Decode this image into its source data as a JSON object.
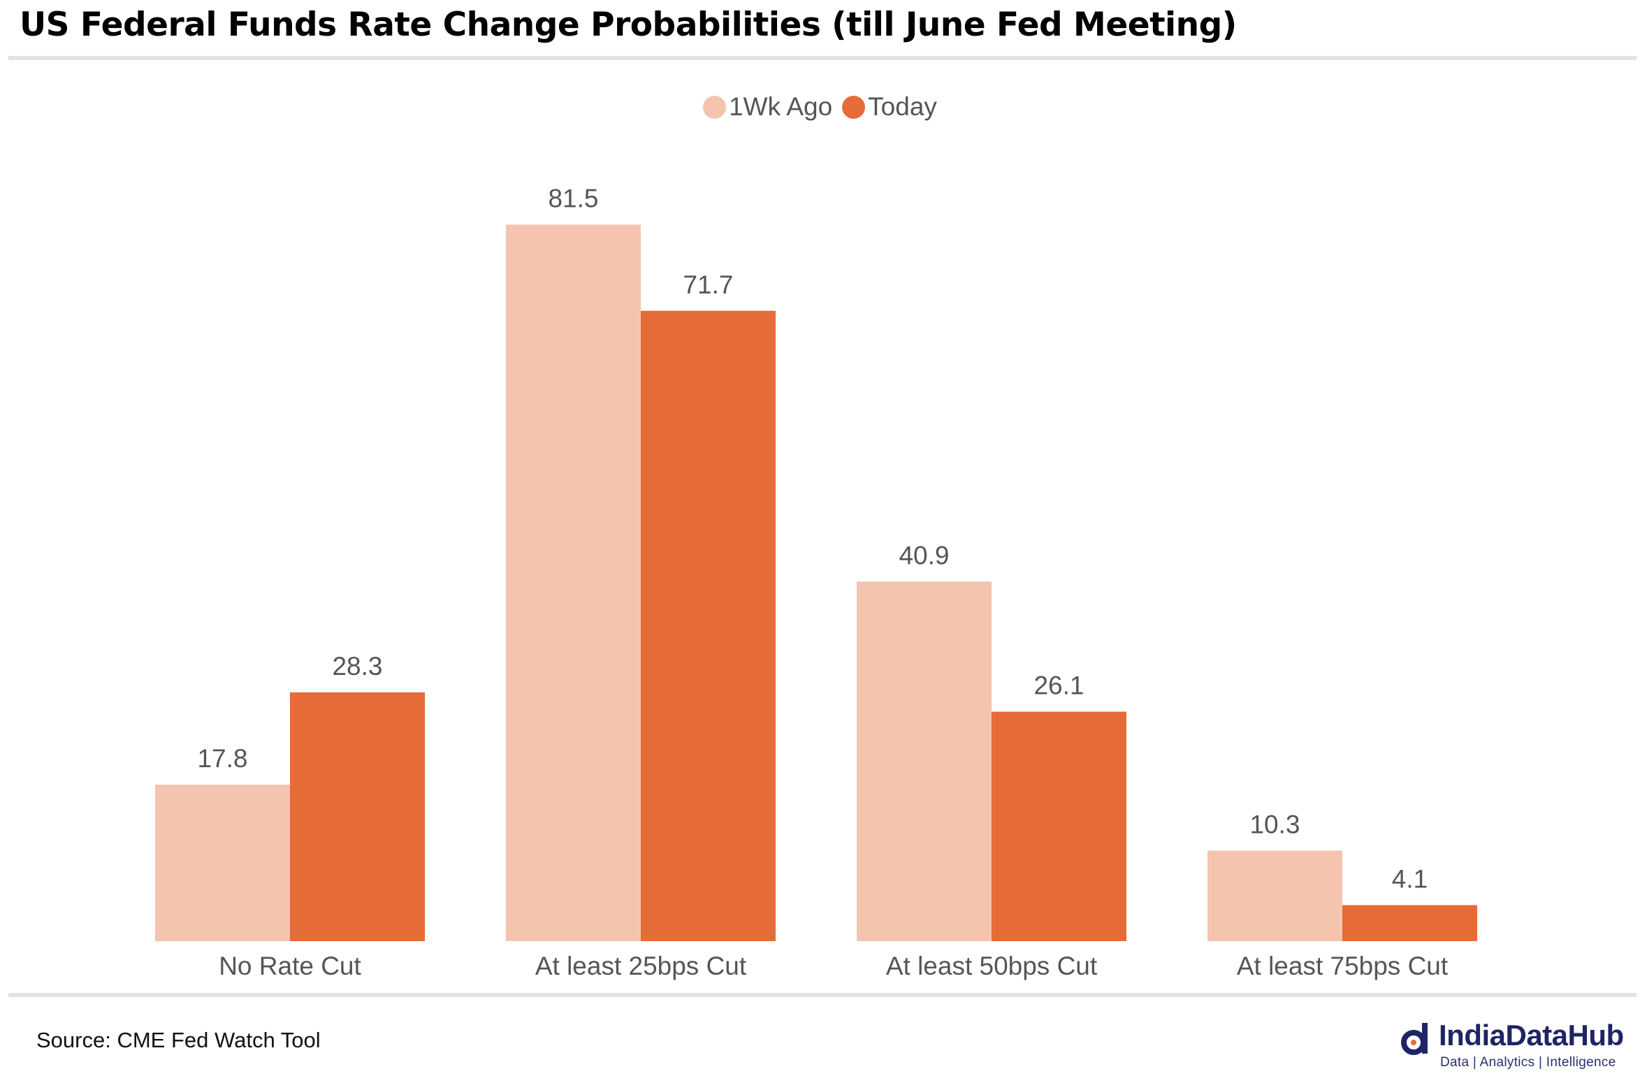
{
  "title": "US Federal Funds Rate Change Probabilities (till June Fed Meeting)",
  "source": "Source: CME Fed Watch Tool",
  "brand": {
    "name": "IndiaDataHub",
    "tagline": "Data | Analytics | Intelligence"
  },
  "colors": {
    "series_1wk": "#F4C4AE",
    "series_today": "#E56C38",
    "text": "#555555"
  },
  "chart_data": {
    "type": "bar",
    "categories": [
      "No Rate Cut",
      "At least 25bps Cut",
      "At least 50bps Cut",
      "At least 75bps Cut"
    ],
    "series": [
      {
        "name": "1Wk Ago",
        "values": [
          17.8,
          81.5,
          40.9,
          10.3
        ]
      },
      {
        "name": "Today",
        "values": [
          28.3,
          71.7,
          26.1,
          4.1
        ]
      }
    ],
    "legend_position": "top-center",
    "grid": false,
    "ylim": [
      0,
      84
    ]
  }
}
